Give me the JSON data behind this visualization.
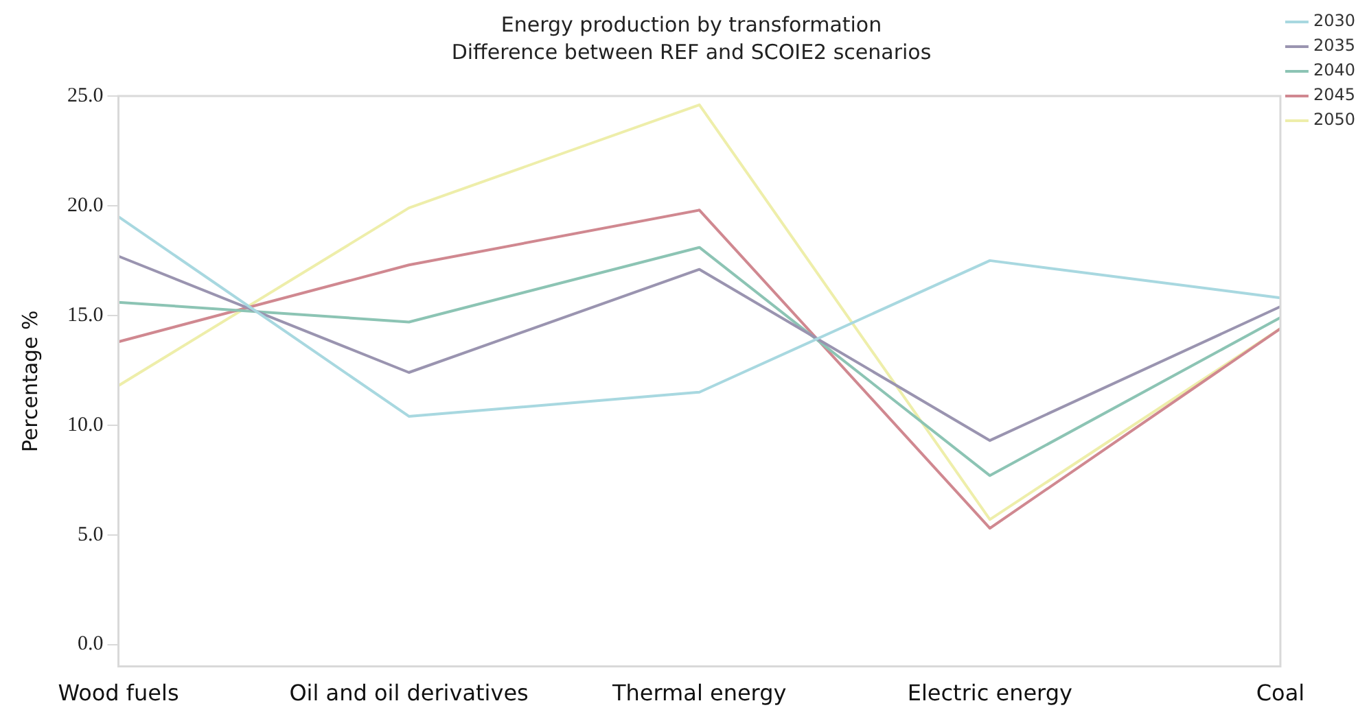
{
  "chart_data": {
    "type": "line",
    "title": "Energy production by transformation",
    "subtitle": "Difference between REF and SCOIE2 scenarios",
    "ylabel": "Percentage %",
    "categories": [
      "Wood fuels",
      "Oil and oil derivatives",
      "Thermal energy",
      "Electric energy",
      "Coal"
    ],
    "series": [
      {
        "name": "2030",
        "color": "#a8d8e0",
        "values": [
          19.5,
          10.4,
          11.5,
          17.5,
          15.8
        ]
      },
      {
        "name": "2035",
        "color": "#9a94b0",
        "values": [
          17.7,
          12.4,
          17.1,
          9.3,
          15.4
        ]
      },
      {
        "name": "2040",
        "color": "#8cc4b4",
        "values": [
          15.6,
          14.7,
          18.1,
          7.7,
          14.9
        ]
      },
      {
        "name": "2045",
        "color": "#d08890",
        "values": [
          13.8,
          17.3,
          19.8,
          5.3,
          14.4
        ]
      },
      {
        "name": "2050",
        "color": "#eeeeaa",
        "values": [
          11.8,
          19.9,
          24.6,
          5.7,
          14.4
        ]
      }
    ],
    "ylim": [
      -1,
      25
    ],
    "yticks": [
      {
        "value": 0,
        "label": "0.0"
      },
      {
        "value": 5,
        "label": "5.0"
      },
      {
        "value": 10,
        "label": "10.0"
      },
      {
        "value": 15,
        "label": "15.0"
      },
      {
        "value": 20,
        "label": "20.0"
      },
      {
        "value": 25,
        "label": "25.0"
      }
    ],
    "grid": false,
    "legend": "right",
    "marker": "none",
    "line_style": "solid"
  }
}
